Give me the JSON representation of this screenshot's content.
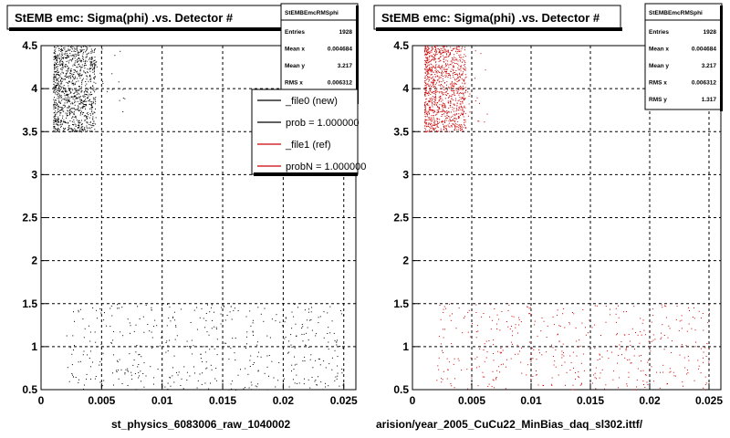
{
  "chart_data": [
    {
      "type": "scatter",
      "title": "StEMB emc: Sigma(phi) .vs. Detector #",
      "xlabel": "st_physics_6083006_raw_1040002",
      "ylabel": "",
      "xlim": [
        0,
        0.026
      ],
      "ylim": [
        0.5,
        4.5
      ],
      "x_ticks": [
        "0",
        "0.005",
        "0.01",
        "0.015",
        "0.02",
        "0.025"
      ],
      "y_ticks": [
        "0.5",
        "1",
        "1.5",
        "2",
        "2.5",
        "3",
        "3.5",
        "4",
        "4.5"
      ],
      "grid": true,
      "marker_color": "#000000",
      "clusters": [
        {
          "x_range": [
            0.001,
            0.0045
          ],
          "y_range": [
            3.5,
            4.5
          ],
          "density": "high"
        },
        {
          "x_range": [
            0.002,
            0.025
          ],
          "y_range": [
            0.5,
            1.5
          ],
          "density": "low"
        }
      ],
      "stats_box": {
        "name": "StEMBEmcRMSphi",
        "rows": [
          {
            "label": "Entries",
            "value": "1928"
          },
          {
            "label": "Mean x",
            "value": "0.004684"
          },
          {
            "label": "Mean y",
            "value": "3.217"
          },
          {
            "label": "RMS x",
            "value": "0.006312"
          }
        ]
      },
      "legend": {
        "placement": "top-right",
        "entries": [
          {
            "label": "_file0 (new)",
            "color": "#000000"
          },
          {
            "label": "prob = 1.000000",
            "color": "#000000"
          },
          {
            "label": "_file1 (ref)",
            "color": "#cc0000"
          },
          {
            "label": "probN = 1.000000",
            "color": "#cc0000"
          }
        ]
      }
    },
    {
      "type": "scatter",
      "title": "StEMB emc: Sigma(phi) .vs. Detector #",
      "xlabel": "arision/year_2005_CuCu22_MinBias_daq_sl302.ittf/",
      "ylabel": "",
      "xlim": [
        0,
        0.026
      ],
      "ylim": [
        0.5,
        4.5
      ],
      "x_ticks": [
        "0",
        "0.005",
        "0.01",
        "0.015",
        "0.02",
        "0.025"
      ],
      "y_ticks": [
        "0.5",
        "1",
        "1.5",
        "2",
        "2.5",
        "3",
        "3.5",
        "4",
        "4.5"
      ],
      "grid": true,
      "marker_color": "#cc0000",
      "clusters": [
        {
          "x_range": [
            0.001,
            0.0045
          ],
          "y_range": [
            3.5,
            4.5
          ],
          "density": "high"
        },
        {
          "x_range": [
            0.002,
            0.025
          ],
          "y_range": [
            0.5,
            1.5
          ],
          "density": "low"
        }
      ],
      "stats_box": {
        "name": "StEMBEmcRMSphi",
        "rows": [
          {
            "label": "Entries",
            "value": "1928"
          },
          {
            "label": "Mean x",
            "value": "0.004684"
          },
          {
            "label": "Mean y",
            "value": "3.217"
          },
          {
            "label": "RMS x",
            "value": "0.006312"
          },
          {
            "label": "RMS y",
            "value": "1.317"
          }
        ]
      }
    }
  ]
}
